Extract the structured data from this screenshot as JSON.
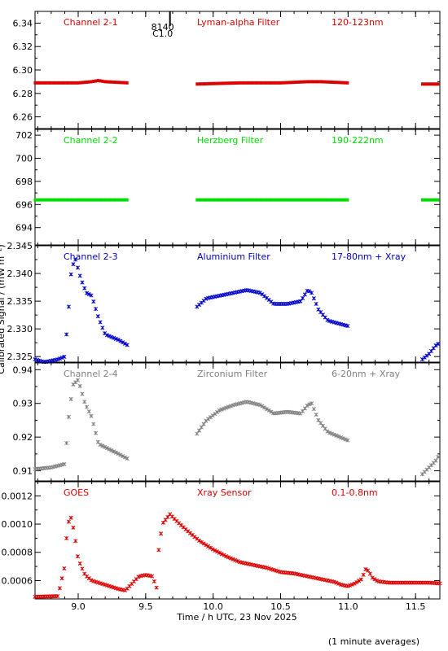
{
  "figure": {
    "xlabel": "Time / h UTC, 23 Nov 2025",
    "ylabel": "Calibrated Signal / (mW m⁻²)",
    "footnote": "(1 minute averages)",
    "event_label_1": "8140",
    "event_label_2": "C1.0",
    "event_x": 9.68
  },
  "chart_data": [
    {
      "type": "scatter",
      "channel": "Channel 2-1",
      "filter": "Lyman-alpha Filter",
      "band": "120-123nm",
      "color": "#dd0000",
      "xlim": [
        8.68,
        11.68
      ],
      "ylim": [
        6.25,
        6.35
      ],
      "yticks": [
        6.26,
        6.28,
        6.3,
        6.32,
        6.34
      ],
      "ytick_labels": [
        "6.26",
        "6.28",
        "6.30",
        "6.32",
        "6.34"
      ],
      "xticks": [
        9.0,
        9.5,
        10.0,
        10.5,
        11.0,
        11.5
      ],
      "segments": [
        {
          "x": [
            8.68,
            9.0,
            9.1,
            9.15,
            9.2,
            9.37
          ],
          "y": [
            6.289,
            6.289,
            6.29,
            6.291,
            6.29,
            6.289
          ]
        },
        {
          "x": [
            9.88,
            10.2,
            10.5,
            10.7,
            10.8,
            11.0
          ],
          "y": [
            6.288,
            6.289,
            6.289,
            6.29,
            6.29,
            6.289
          ]
        },
        {
          "x": [
            11.55,
            11.68
          ],
          "y": [
            6.288,
            6.288
          ]
        }
      ]
    },
    {
      "type": "scatter",
      "channel": "Channel 2-2",
      "filter": "Herzberg Filter",
      "band": "190-222nm",
      "color": "#00dd00",
      "xlim": [
        8.68,
        11.68
      ],
      "ylim": [
        692.5,
        702.5
      ],
      "yticks": [
        694,
        696,
        698,
        700,
        702
      ],
      "ytick_labels": [
        "694",
        "696",
        "698",
        "700",
        "702"
      ],
      "xticks": [
        9.0,
        9.5,
        10.0,
        10.5,
        11.0,
        11.5
      ],
      "segments": [
        {
          "x": [
            8.68,
            9.37
          ],
          "y": [
            696.4,
            696.4
          ]
        },
        {
          "x": [
            9.88,
            11.0
          ],
          "y": [
            696.4,
            696.4
          ]
        },
        {
          "x": [
            11.55,
            11.68
          ],
          "y": [
            696.4,
            696.4
          ]
        }
      ]
    },
    {
      "type": "scatter",
      "channel": "Channel 2-3",
      "filter": "Aluminium Filter",
      "band": "17-80nm + Xray",
      "color": "#0000cc",
      "xlim": [
        8.68,
        11.68
      ],
      "ylim": [
        2.324,
        2.345
      ],
      "yticks": [
        2.325,
        2.33,
        2.335,
        2.34,
        2.345
      ],
      "ytick_labels": [
        "2.325",
        "2.330",
        "2.335",
        "2.340",
        "2.345"
      ],
      "xticks": [
        9.0,
        9.5,
        10.0,
        10.5,
        11.0,
        11.5
      ],
      "segments": [
        {
          "x": [
            8.68,
            8.75,
            8.85,
            8.9,
            8.93,
            8.95,
            8.98,
            9.02,
            9.06,
            9.1,
            9.15,
            9.2,
            9.3,
            9.37
          ],
          "y": [
            2.3245,
            2.324,
            2.3245,
            2.325,
            2.334,
            2.341,
            2.3425,
            2.339,
            2.3365,
            2.336,
            2.332,
            2.329,
            2.328,
            2.327
          ]
        },
        {
          "x": [
            9.88,
            9.95,
            10.05,
            10.15,
            10.25,
            10.35,
            10.45,
            10.55,
            10.65,
            10.7,
            10.73,
            10.78,
            10.85,
            11.0
          ],
          "y": [
            2.334,
            2.3355,
            2.336,
            2.3365,
            2.337,
            2.3365,
            2.3345,
            2.3345,
            2.335,
            2.337,
            2.3365,
            2.3335,
            2.3315,
            2.3305
          ]
        },
        {
          "x": [
            11.55,
            11.6,
            11.65,
            11.68
          ],
          "y": [
            2.3245,
            2.3255,
            2.327,
            2.3275
          ]
        }
      ]
    },
    {
      "type": "scatter",
      "channel": "Channel 2-4",
      "filter": "Zirconium Filter",
      "band": "6-20nm + Xray",
      "color": "#808080",
      "xlim": [
        8.68,
        11.68
      ],
      "ylim": [
        0.907,
        0.942
      ],
      "yticks": [
        0.91,
        0.92,
        0.93,
        0.94
      ],
      "ytick_labels": [
        "0.91",
        "0.92",
        "0.93",
        "0.94"
      ],
      "xticks": [
        9.0,
        9.5,
        10.0,
        10.5,
        11.0,
        11.5
      ],
      "segments": [
        {
          "x": [
            8.68,
            8.8,
            8.9,
            8.93,
            8.96,
            9.0,
            9.05,
            9.1,
            9.15,
            9.2,
            9.3,
            9.37
          ],
          "y": [
            0.9105,
            0.911,
            0.912,
            0.926,
            0.9355,
            0.937,
            0.93,
            0.926,
            0.918,
            0.917,
            0.915,
            0.9135
          ]
        },
        {
          "x": [
            9.88,
            9.95,
            10.05,
            10.15,
            10.25,
            10.35,
            10.45,
            10.55,
            10.65,
            10.7,
            10.73,
            10.78,
            10.85,
            11.0
          ],
          "y": [
            0.921,
            0.925,
            0.928,
            0.9295,
            0.9305,
            0.9295,
            0.927,
            0.9275,
            0.927,
            0.9295,
            0.93,
            0.925,
            0.9215,
            0.919
          ]
        },
        {
          "x": [
            11.55,
            11.6,
            11.65,
            11.68
          ],
          "y": [
            0.909,
            0.911,
            0.913,
            0.915
          ]
        }
      ]
    },
    {
      "type": "scatter",
      "channel": "GOES",
      "filter": "Xray Sensor",
      "band": "0.1-0.8nm",
      "color": "#dd0000",
      "xlim": [
        8.68,
        11.68
      ],
      "ylim": [
        0.00047,
        0.0013
      ],
      "yticks": [
        0.0006,
        0.0008,
        0.001,
        0.0012
      ],
      "ytick_labels": [
        "0.0006",
        "0.0008",
        "0.0010",
        "0.0012"
      ],
      "xticks": [
        9.0,
        9.5,
        10.0,
        10.5,
        11.0,
        11.5
      ],
      "xtick_labels": [
        "9.0",
        "9.5",
        "10.0",
        "10.5",
        "11.0",
        "11.5"
      ],
      "segments": [
        {
          "x": [
            8.68,
            8.85,
            8.9,
            8.92,
            8.95,
            8.98,
            9.0,
            9.05,
            9.1,
            9.2,
            9.3,
            9.35,
            9.4,
            9.45,
            9.5,
            9.55,
            9.58,
            9.6,
            9.63,
            9.68,
            9.72,
            9.8,
            9.9,
            10.0,
            10.1,
            10.2,
            10.3,
            10.4,
            10.5,
            10.6,
            10.7,
            10.8,
            10.9,
            10.95,
            11.0,
            11.05,
            11.1,
            11.13,
            11.15,
            11.18,
            11.22,
            11.3,
            11.4,
            11.5,
            11.6,
            11.68
          ],
          "y": [
            0.000485,
            0.00049,
            0.0007,
            0.001,
            0.00105,
            0.00088,
            0.00075,
            0.00064,
            0.0006,
            0.00057,
            0.00054,
            0.00053,
            0.00058,
            0.00063,
            0.00064,
            0.00063,
            0.00055,
            0.00087,
            0.00101,
            0.00107,
            0.00103,
            0.00096,
            0.00088,
            0.00082,
            0.00077,
            0.00073,
            0.00071,
            0.00069,
            0.00066,
            0.00065,
            0.00063,
            0.00061,
            0.00059,
            0.00057,
            0.00056,
            0.00058,
            0.00061,
            0.00068,
            0.00067,
            0.00062,
            0.000595,
            0.000585,
            0.000585,
            0.000585,
            0.000585,
            0.00058
          ]
        }
      ]
    }
  ]
}
